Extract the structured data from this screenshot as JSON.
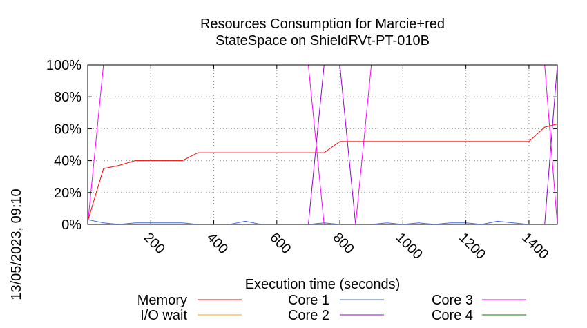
{
  "chart_data": {
    "type": "line",
    "title": "Resources Consumption for Marcie+red",
    "subtitle": "StateSpace on ShieldRVt-PT-010B",
    "xlabel": "Execution time (seconds)",
    "ylabel": "",
    "timestamp": "13/05/2023, 09:10",
    "xlim": [
      0,
      1490
    ],
    "ylim": [
      0,
      100
    ],
    "xticks": [
      200,
      400,
      600,
      800,
      1000,
      1200,
      1400
    ],
    "yticks": [
      0,
      20,
      40,
      60,
      80,
      100
    ],
    "ytick_labels": [
      "0%",
      "20%",
      "40%",
      "60%",
      "80%",
      "100%"
    ],
    "grid": true,
    "legend_position": "bottom",
    "series": [
      {
        "name": "Memory",
        "color": "#ff0000",
        "x": [
          0,
          50,
          100,
          150,
          200,
          250,
          300,
          350,
          400,
          450,
          500,
          550,
          600,
          650,
          700,
          750,
          800,
          850,
          900,
          950,
          1000,
          1050,
          1100,
          1150,
          1200,
          1250,
          1300,
          1350,
          1400,
          1450,
          1490
        ],
        "y": [
          2,
          35,
          37,
          40,
          40,
          40,
          40,
          45,
          45,
          45,
          45,
          45,
          45,
          45,
          45,
          45,
          52,
          52,
          52,
          52,
          52,
          52,
          52,
          52,
          52,
          52,
          52,
          52,
          52,
          61,
          63
        ]
      },
      {
        "name": "I/O wait",
        "color": "#ffa500",
        "x": [
          0,
          1490
        ],
        "y": [
          0,
          0
        ]
      },
      {
        "name": "Core 1",
        "color": "#4169e1",
        "x": [
          0,
          50,
          100,
          150,
          200,
          250,
          300,
          350,
          400,
          450,
          500,
          550,
          600,
          650,
          700,
          750,
          800,
          850,
          900,
          950,
          1000,
          1050,
          1100,
          1150,
          1200,
          1250,
          1300,
          1350,
          1400,
          1450,
          1490
        ],
        "y": [
          3,
          1,
          0,
          1,
          1,
          1,
          1,
          0,
          0,
          0,
          2,
          0,
          0,
          0,
          0,
          1,
          0,
          0,
          0,
          1,
          0,
          1,
          0,
          1,
          1,
          0,
          2,
          1,
          0,
          0,
          0
        ]
      },
      {
        "name": "Core 2",
        "color": "#9400d3",
        "x": [
          0,
          50,
          100,
          150,
          200,
          250,
          300,
          350,
          400,
          450,
          500,
          550,
          600,
          650,
          700,
          750,
          800,
          850,
          900,
          950,
          1000,
          1050,
          1100,
          1150,
          1200,
          1250,
          1300,
          1350,
          1400,
          1450,
          1490
        ],
        "y": [
          0,
          0,
          0,
          0,
          0,
          0,
          0,
          0,
          0,
          0,
          0,
          0,
          0,
          0,
          0,
          100,
          100,
          0,
          0,
          0,
          0,
          0,
          0,
          0,
          0,
          0,
          0,
          0,
          0,
          0,
          100
        ]
      },
      {
        "name": "Core 3",
        "color": "#ff00ff",
        "x": [
          0,
          50,
          100,
          150,
          200,
          250,
          300,
          350,
          400,
          450,
          500,
          550,
          600,
          650,
          700,
          750,
          800,
          850,
          900,
          950,
          1000,
          1050,
          1100,
          1150,
          1200,
          1250,
          1300,
          1350,
          1400,
          1450,
          1490
        ],
        "y": [
          0,
          100,
          100,
          100,
          100,
          100,
          100,
          100,
          100,
          100,
          100,
          100,
          100,
          100,
          100,
          0,
          0,
          0,
          100,
          100,
          100,
          100,
          100,
          100,
          100,
          100,
          100,
          100,
          100,
          100,
          0
        ]
      },
      {
        "name": "Core 4",
        "color": "#008000",
        "x": [
          0,
          1490
        ],
        "y": [
          0,
          0
        ]
      }
    ]
  }
}
